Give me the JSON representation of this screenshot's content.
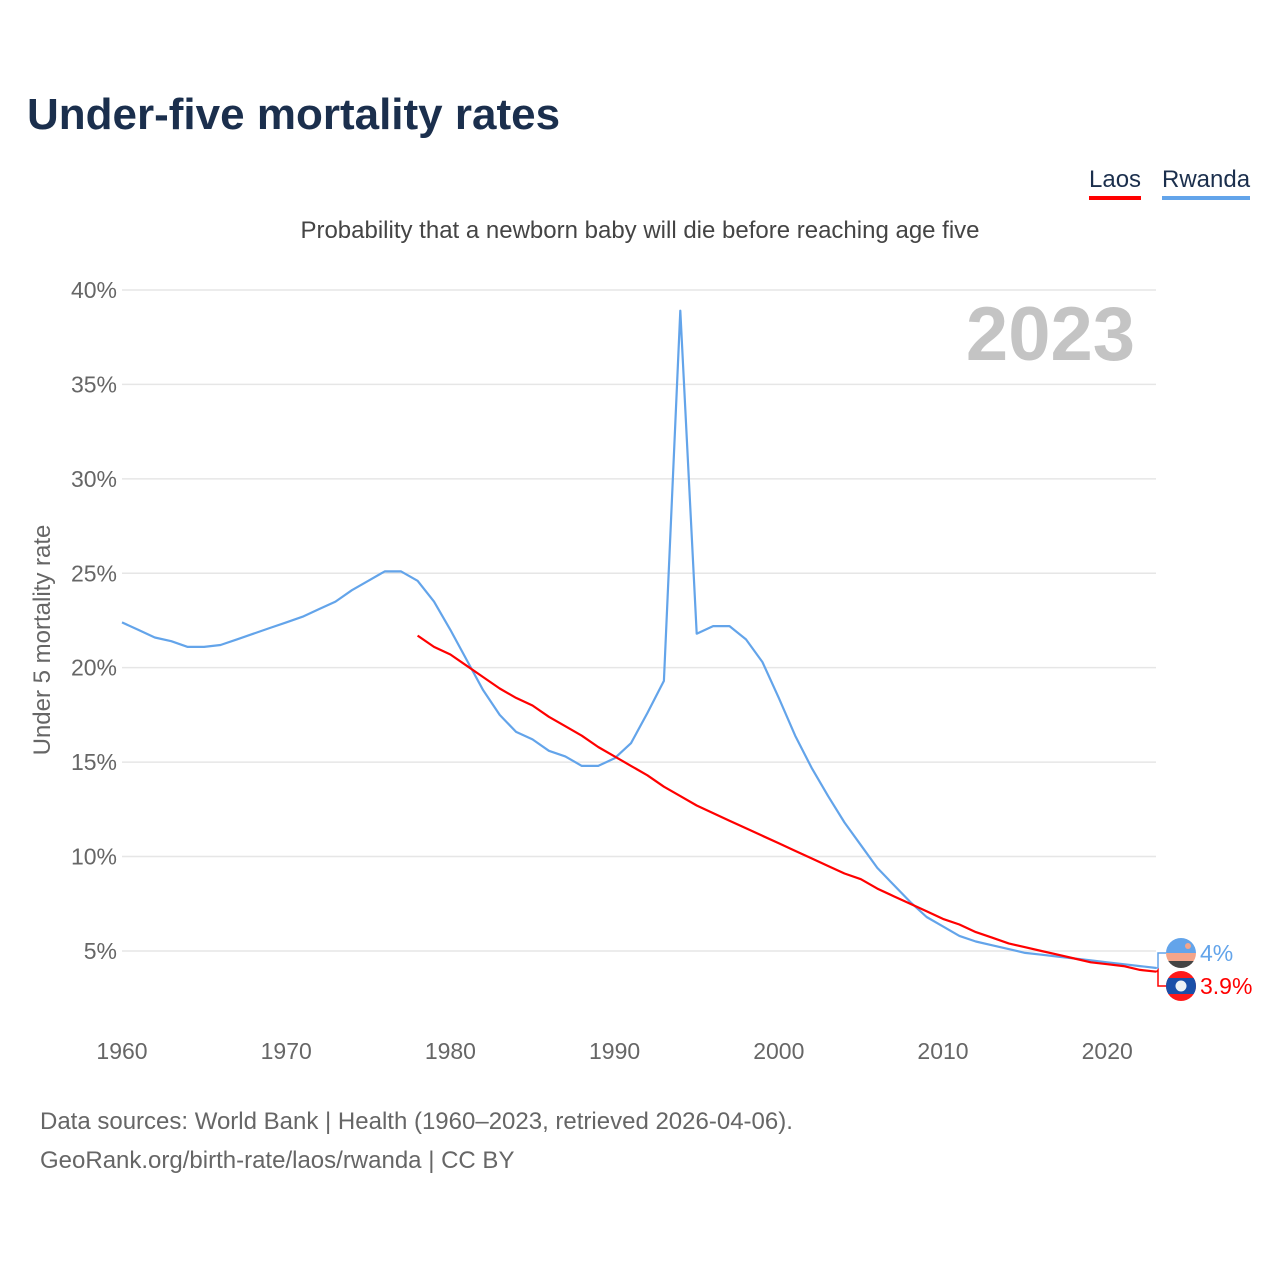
{
  "title": "Under-five mortality rates",
  "subtitle": "Probability that a newborn baby will die before reaching age five",
  "legend": [
    {
      "label": "Laos",
      "color": "#ff0000"
    },
    {
      "label": "Rwanda",
      "color": "#63a4ea"
    }
  ],
  "footer": {
    "line1": "Data sources: World Bank | Health (1960–2023, retrieved 2026-04-06).",
    "line2": "GeoRank.org/birth-rate/laos/rwanda | CC BY"
  },
  "chart_data": {
    "type": "line",
    "title": "Under-five mortality rates",
    "ylabel": "Under 5 mortality rate",
    "xlabel": "",
    "year_label": "2023",
    "xlim": [
      1960,
      2023
    ],
    "ylim": [
      0,
      40
    ],
    "xticks": [
      1960,
      1970,
      1980,
      1990,
      2000,
      2010,
      2020
    ],
    "yticks": [
      5,
      10,
      15,
      20,
      25,
      30,
      35,
      40
    ],
    "ytick_labels": [
      "5%",
      "10%",
      "15%",
      "20%",
      "25%",
      "30%",
      "35%",
      "40%"
    ],
    "grid": true,
    "legend_position": "top-right",
    "series": [
      {
        "name": "Rwanda",
        "color": "#63a4ea",
        "end_label": "4%",
        "start_year": 1960,
        "values": [
          22.4,
          22.0,
          21.6,
          21.4,
          21.1,
          21.1,
          21.2,
          21.5,
          21.8,
          22.1,
          22.4,
          22.7,
          23.1,
          23.5,
          24.1,
          24.6,
          25.1,
          25.1,
          24.6,
          23.5,
          22.0,
          20.4,
          18.8,
          17.5,
          16.6,
          16.2,
          15.6,
          15.3,
          14.8,
          14.8,
          15.2,
          16.0,
          17.6,
          19.3,
          38.9,
          21.8,
          22.2,
          22.2,
          21.5,
          20.3,
          18.4,
          16.4,
          14.7,
          13.2,
          11.8,
          10.6,
          9.4,
          8.5,
          7.6,
          6.8,
          6.3,
          5.8,
          5.5,
          5.3,
          5.1,
          4.9,
          4.8,
          4.7,
          4.6,
          4.5,
          4.4,
          4.3,
          4.2,
          4.1
        ]
      },
      {
        "name": "Laos",
        "color": "#ff0000",
        "end_label": "3.9%",
        "start_year": 1978,
        "values": [
          21.7,
          21.1,
          20.7,
          20.1,
          19.5,
          18.9,
          18.4,
          18.0,
          17.4,
          16.9,
          16.4,
          15.8,
          15.3,
          14.8,
          14.3,
          13.7,
          13.2,
          12.7,
          12.3,
          11.9,
          11.5,
          11.1,
          10.7,
          10.3,
          9.9,
          9.5,
          9.1,
          8.8,
          8.3,
          7.9,
          7.5,
          7.1,
          6.7,
          6.4,
          6.0,
          5.7,
          5.4,
          5.2,
          5.0,
          4.8,
          4.6,
          4.4,
          4.3,
          4.2,
          4.0,
          3.9
        ]
      }
    ]
  }
}
